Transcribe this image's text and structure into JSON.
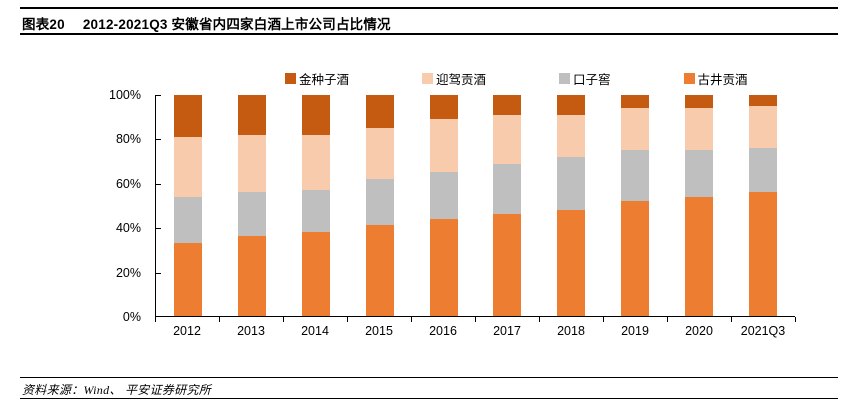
{
  "header": {
    "figure_label": "图表20",
    "title": "2012-2021Q3 安徽省内四家白酒上市公司占比情况"
  },
  "footer": {
    "source": "资料来源：Wind、 平安证券研究所"
  },
  "chart_data": {
    "type": "bar",
    "stacked": true,
    "unit": "%",
    "title": "2012-2021Q3 安徽省内四家白酒上市公司占比情况",
    "categories": [
      "2012",
      "2013",
      "2014",
      "2015",
      "2016",
      "2017",
      "2018",
      "2019",
      "2020",
      "2021Q3"
    ],
    "series": [
      {
        "name": "古井贡酒",
        "color": "#ED7D31",
        "values": [
          33,
          36,
          38,
          41,
          44,
          46,
          48,
          52,
          54,
          56
        ]
      },
      {
        "name": "口子窖",
        "color": "#BFBFBF",
        "values": [
          21,
          20,
          19,
          21,
          21,
          23,
          24,
          23,
          21,
          20
        ]
      },
      {
        "name": "迎驾贡酒",
        "color": "#F8CBAD",
        "values": [
          27,
          26,
          25,
          23,
          24,
          22,
          19,
          19,
          19,
          19
        ]
      },
      {
        "name": "金种子酒",
        "color": "#C55A11",
        "values": [
          19,
          18,
          18,
          15,
          11,
          9,
          9,
          6,
          6,
          5
        ]
      }
    ],
    "legend": [
      {
        "name": "金种子酒",
        "color": "#C55A11"
      },
      {
        "name": "迎驾贡酒",
        "color": "#F8CBAD"
      },
      {
        "name": "口子窖",
        "color": "#BFBFBF"
      },
      {
        "name": "古井贡酒",
        "color": "#ED7D31"
      }
    ],
    "y_ticks": [
      "100%",
      "80%",
      "60%",
      "40%",
      "20%",
      "0%"
    ],
    "ylim": [
      0,
      100
    ],
    "legend_position": "top",
    "grid": false,
    "axis_color": "#000000"
  }
}
